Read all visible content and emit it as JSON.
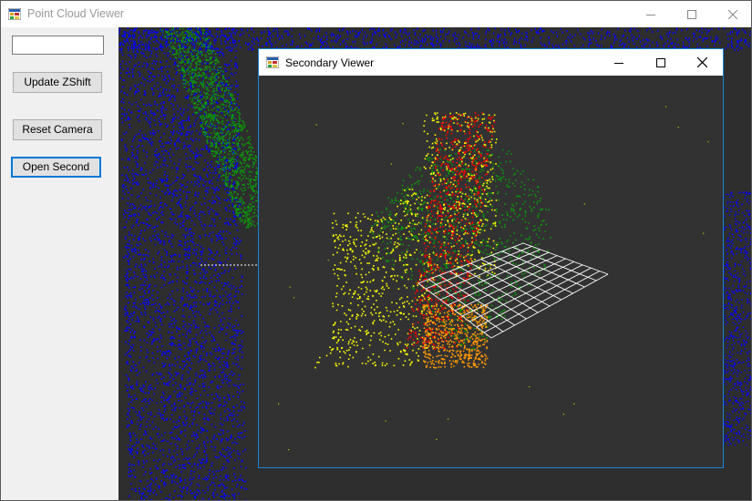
{
  "window": {
    "title": "Point Cloud Viewer",
    "icon": "app-window-icon"
  },
  "sidebar": {
    "text_input_value": "",
    "update_zshift_label": "Update ZShift",
    "reset_camera_label": "Reset Camera",
    "open_second_label": "Open Second"
  },
  "secondary": {
    "title": "Secondary Viewer",
    "icon": "app-window-icon"
  },
  "colors": {
    "viewport_bg": "#2e2e2e",
    "secondary_bg": "#323232",
    "points_blue": "#0000ff",
    "points_green": "#0a9a0a",
    "points_yellow": "#ffff00",
    "points_red": "#ff0000",
    "points_orange": "#ff9900",
    "grid": "#ffffff",
    "accent": "#0078d7"
  }
}
